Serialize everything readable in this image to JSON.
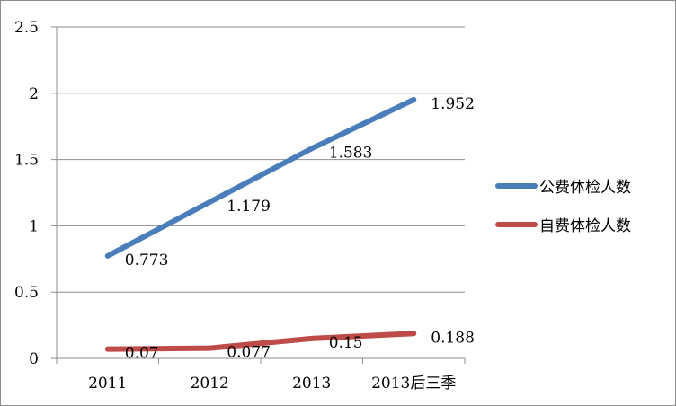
{
  "chart_data": {
    "type": "line",
    "categories": [
      "2011",
      "2012",
      "2013",
      "2013后三季"
    ],
    "series": [
      {
        "name": "公费体检人数",
        "values": [
          0.773,
          1.179,
          1.583,
          1.952
        ],
        "color": "#4a7ebb"
      },
      {
        "name": "自费体检人数",
        "values": [
          0.07,
          0.077,
          0.15,
          0.188
        ],
        "color": "#be4b48"
      }
    ],
    "data_labels": [
      [
        "0.773",
        "1.179",
        "1.583",
        "1.952"
      ],
      [
        "0.07",
        "0.077",
        "0.15",
        "0.188"
      ]
    ],
    "y_ticks": [
      "0",
      "0.5",
      "1",
      "1.5",
      "2",
      "2.5"
    ],
    "ylim": [
      0,
      2.5
    ],
    "grid": true,
    "legend": "right",
    "title": "",
    "xlabel": "",
    "ylabel": ""
  }
}
